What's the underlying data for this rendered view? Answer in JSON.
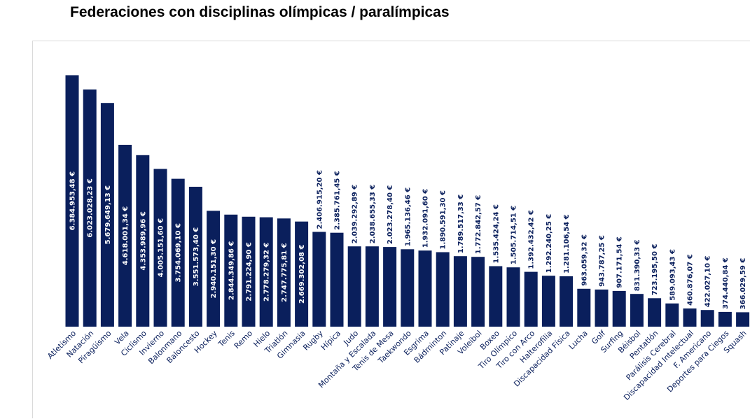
{
  "chart_data": {
    "type": "bar",
    "title": "Federaciones con disciplinas olímpicas / paralímpicas",
    "categories": [
      "Atletismo",
      "Natación",
      "Piragüismo",
      "Vela",
      "Ciclismo",
      "Invierno",
      "Balonmano",
      "Baloncesto",
      "Hockey",
      "Tenis",
      "Remo",
      "Hielo",
      "Triatlón",
      "Gimnasia",
      "Rugby",
      "Hípica",
      "Judo",
      "Montaña y Escalada",
      "Tenis de Mesa",
      "Taekwondo",
      "Esgrima",
      "Bádminton",
      "Patinaje",
      "Voleibol",
      "Boxeo",
      "Tiro Olímpico",
      "Tiro con Arco",
      "Halterofilia",
      "Discapacidad Física",
      "Lucha",
      "Golf",
      "Surfing",
      "Béisbol",
      "Pentatlón",
      "Parálisis Cerebral",
      "Discapacidad Intelectual",
      "F. Americano",
      "Deportes para Ciegos",
      "Squash"
    ],
    "values": [
      6384953.48,
      6023028.23,
      5679649.13,
      4618001.34,
      4353989.96,
      4005151.6,
      3754069.1,
      3551573.4,
      2940151.3,
      2844349.86,
      2791224.9,
      2778279.32,
      2747775.81,
      2669302.08,
      2406915.2,
      2385761.45,
      2039292.89,
      2038655.33,
      2023278.4,
      1965136.46,
      1932091.6,
      1890591.3,
      1789517.33,
      1772842.57,
      1535424.24,
      1505714.51,
      1392432.42,
      1292240.25,
      1281106.54,
      963059.32,
      943787.25,
      907171.54,
      831390.33,
      723195.5,
      589093.43,
      460876.07,
      422027.1,
      374440.84,
      366029.59
    ],
    "value_labels": [
      "6.384.953,48 €",
      "6.023.028,23 €",
      "5.679.649,13 €",
      "4.618.001,34 €",
      "4.353.989,96 €",
      "4.005.151,60 €",
      "3.754.069,10 €",
      "3.551.573,40 €",
      "2.940.151,30 €",
      "2.844.349,86 €",
      "2.791.224,90 €",
      "2.778.279,32 €",
      "2.747.775,81 €",
      "2.669.302,08 €",
      "2.406.915,20 €",
      "2.385.761,45 €",
      "2.039.292,89 €",
      "2.038.655,33 €",
      "2.023.278,40 €",
      "1.965.136,46 €",
      "1.932.091,60 €",
      "1.890.591,30 €",
      "1.789.517,33 €",
      "1.772.842,57 €",
      "1.535.424,24 €",
      "1.505.714,51 €",
      "1.392.432,42 €",
      "1.292.240,25 €",
      "1.281.106,54 €",
      "963.059,32 €",
      "943.787,25 €",
      "907.171,54 €",
      "831.390,33 €",
      "723.195,50 €",
      "589.093,43 €",
      "460.876,07 €",
      "422.027,10 €",
      "374.440,84 €",
      "366.029,59 €"
    ],
    "ylim": [
      0,
      6500000
    ],
    "grid": false,
    "legend": "none",
    "bar_color": "#0a1f5c"
  }
}
